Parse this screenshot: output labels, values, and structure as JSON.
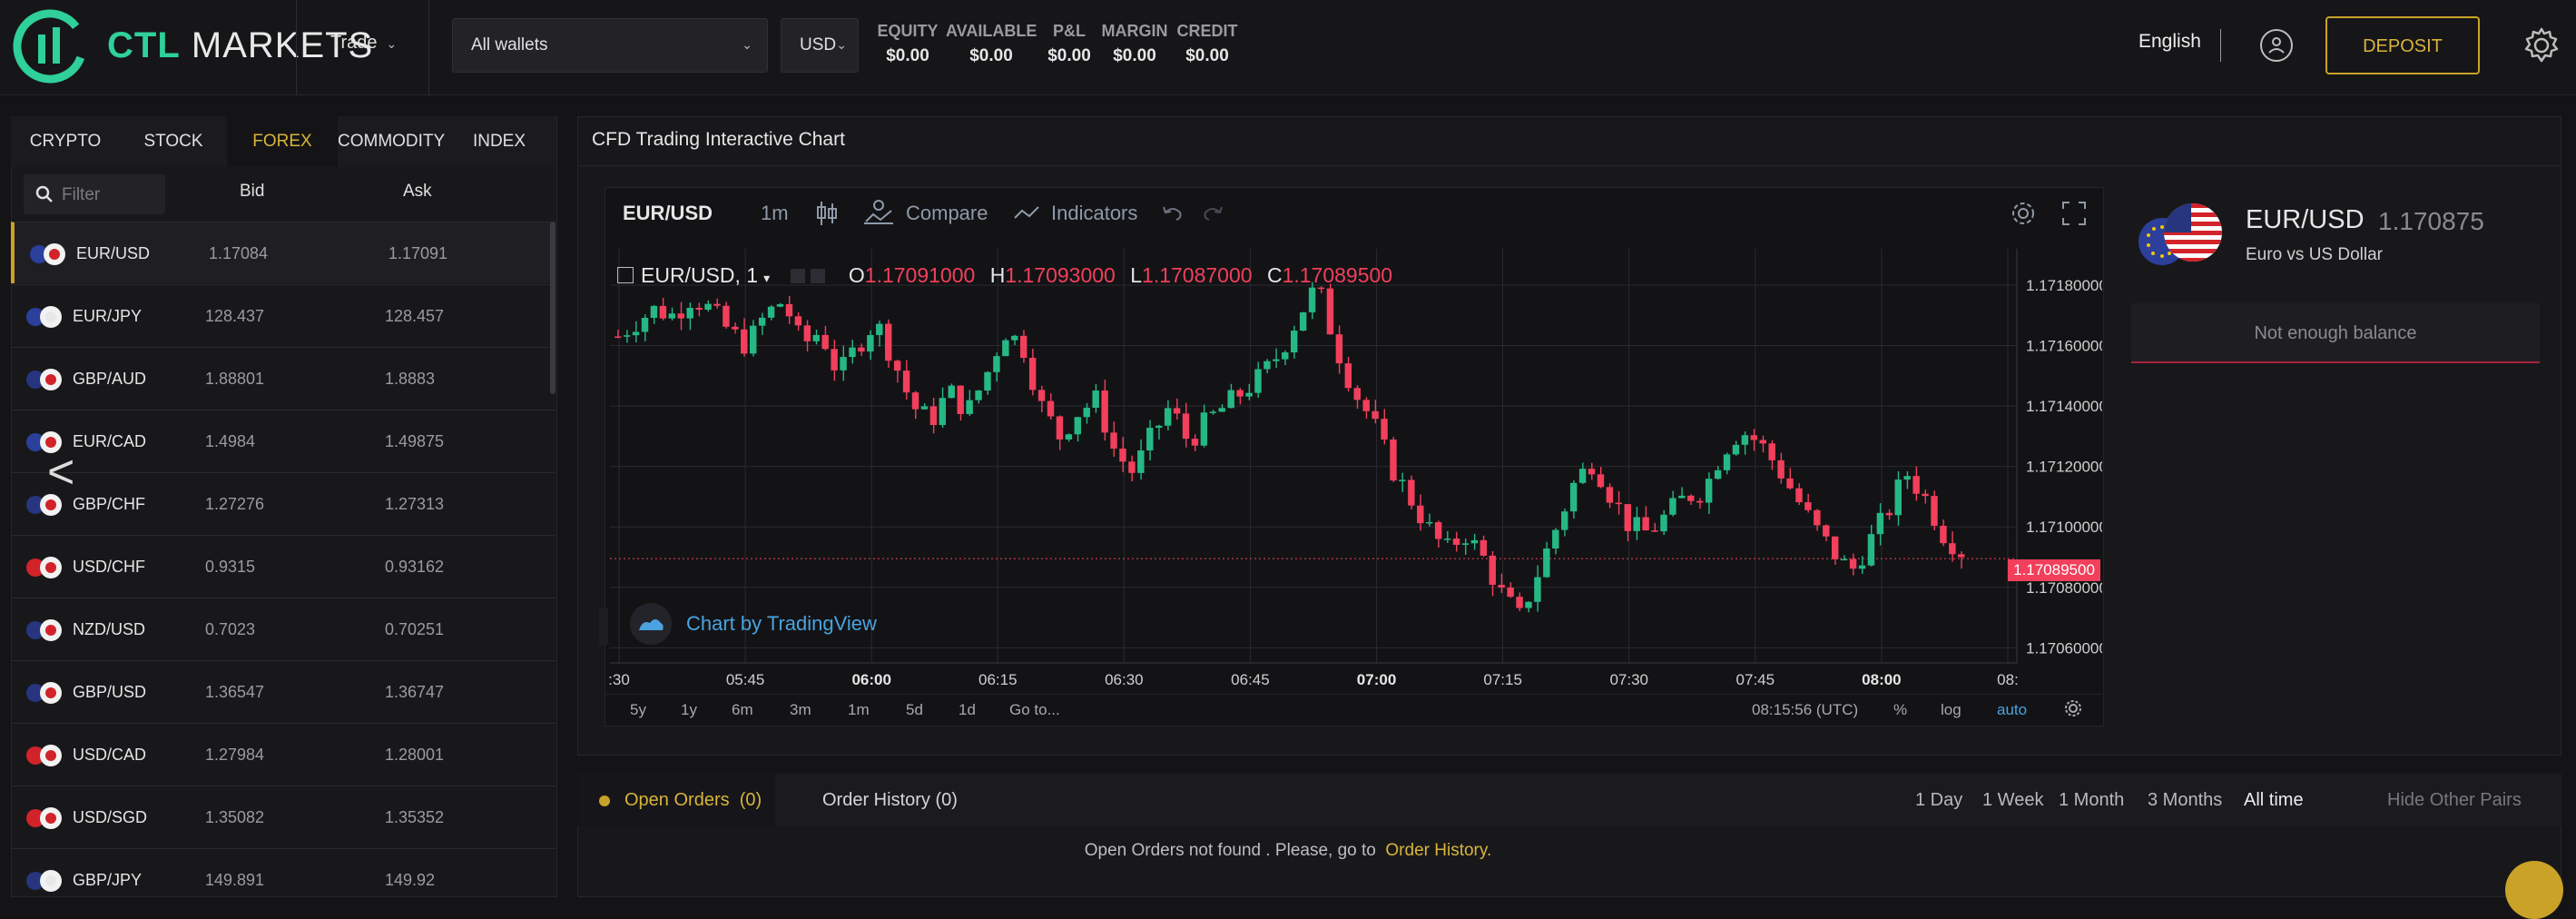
{
  "header": {
    "brand_first": "CTL",
    "brand_second": " MARKETS",
    "trade_menu": "Trade",
    "wallet_select": "All wallets",
    "currency_select": "USD",
    "metrics": [
      {
        "label": "EQUITY",
        "value": "$0.00"
      },
      {
        "label": "AVAILABLE",
        "value": "$0.00"
      },
      {
        "label": "P&L",
        "value": "$0.00"
      },
      {
        "label": "MARGIN",
        "value": "$0.00"
      },
      {
        "label": "CREDIT",
        "value": "$0.00"
      }
    ],
    "language": "English",
    "deposit_label": "DEPOSIT"
  },
  "markets": {
    "tabs": [
      "CRYPTO",
      "STOCK",
      "FOREX",
      "COMMODITY",
      "INDEX"
    ],
    "active_tab": "FOREX",
    "filter_placeholder": "Filter",
    "col_bid": "Bid",
    "col_ask": "Ask",
    "rows": [
      {
        "pair": "EUR/USD",
        "bid": "1.17084",
        "ask": "1.17091"
      },
      {
        "pair": "EUR/JPY",
        "bid": "128.437",
        "ask": "128.457"
      },
      {
        "pair": "GBP/AUD",
        "bid": "1.88801",
        "ask": "1.8883"
      },
      {
        "pair": "EUR/CAD",
        "bid": "1.4984",
        "ask": "1.49875"
      },
      {
        "pair": "GBP/CHF",
        "bid": "1.27276",
        "ask": "1.27313"
      },
      {
        "pair": "USD/CHF",
        "bid": "0.9315",
        "ask": "0.93162"
      },
      {
        "pair": "NZD/USD",
        "bid": "0.7023",
        "ask": "0.70251"
      },
      {
        "pair": "GBP/USD",
        "bid": "1.36547",
        "ask": "1.36747"
      },
      {
        "pair": "USD/CAD",
        "bid": "1.27984",
        "ask": "1.28001"
      },
      {
        "pair": "USD/SGD",
        "bid": "1.35082",
        "ask": "1.35352"
      },
      {
        "pair": "GBP/JPY",
        "bid": "149.891",
        "ask": "149.92"
      }
    ]
  },
  "nav": {
    "prev": "<",
    "next": ">"
  },
  "chart_panel": {
    "title": "CFD Trading Interactive Chart",
    "toolbar": {
      "symbol": "EUR/USD",
      "interval": "1m",
      "compare": "Compare",
      "indicators": "Indicators"
    },
    "legend": {
      "symbol": "EUR/USD, 1",
      "o_label": "O",
      "o_value": "1.17091000",
      "h_label": "H",
      "h_value": "1.17093000",
      "l_label": "L",
      "l_value": "1.17087000",
      "c_label": "C",
      "c_value": "1.17089500"
    },
    "watermark": "Chart by TradingView",
    "current_price": "1.17089500",
    "ranges": [
      "5y",
      "1y",
      "6m",
      "3m",
      "1m",
      "5d",
      "1d",
      "Go to..."
    ],
    "clock": "08:15:56 (UTC)",
    "pct": "%",
    "log": "log",
    "auto": "auto"
  },
  "chart_data": {
    "type": "candlestick",
    "price_ticks": [
      "1.17180000",
      "1.17160000",
      "1.17140000",
      "1.17120000",
      "1.17100000",
      "1.17080000",
      "1.17060000"
    ],
    "time_ticks": [
      ":30",
      "05:45",
      "06:00",
      "06:15",
      "06:30",
      "06:45",
      "07:00",
      "07:15",
      "07:30",
      "07:45",
      "08:00",
      "08:"
    ],
    "bold_time_ticks": [
      "06:00",
      "07:00",
      "08:00"
    ],
    "ylim": [
      1.17055,
      1.17192
    ],
    "path": [
      1.17163,
      1.17168,
      1.17172,
      1.1717,
      1.17176,
      1.17172,
      1.17165,
      1.1716,
      1.1717,
      1.17175,
      1.1716,
      1.17165,
      1.1715,
      1.1716,
      1.17168,
      1.17155,
      1.1714,
      1.17135,
      1.17145,
      1.17138,
      1.1715,
      1.17165,
      1.1716,
      1.1714,
      1.1713,
      1.17138,
      1.17142,
      1.17125,
      1.17118,
      1.1713,
      1.1714,
      1.17128,
      1.17135,
      1.1714,
      1.17145,
      1.1715,
      1.17158,
      1.1717,
      1.1718,
      1.1716,
      1.17145,
      1.17135,
      1.1712,
      1.1711,
      1.171,
      1.17092,
      1.17098,
      1.1709,
      1.17078,
      1.1707,
      1.17085,
      1.171,
      1.17115,
      1.17122,
      1.1711,
      1.171,
      1.17098,
      1.17104,
      1.1711,
      1.17112,
      1.17125,
      1.17132,
      1.17128,
      1.1712,
      1.1711,
      1.171,
      1.17092,
      1.17085,
      1.17095,
      1.17105,
      1.17118,
      1.1711,
      1.17098,
      1.17092
    ]
  },
  "info": {
    "pair": "EUR/USD",
    "price": "1.170875",
    "description": "Euro vs US Dollar",
    "balance_button": "Not enough balance"
  },
  "orders": {
    "open_label": "Open Orders",
    "open_count": "(0)",
    "history_label": "Order History (0)",
    "periods": [
      "1 Day",
      "1 Week",
      "1 Month",
      "3 Months",
      "All time"
    ],
    "active_period": "All time",
    "hide_pairs": "Hide Other Pairs",
    "empty_msg": "Open Orders not found . Please, go to",
    "empty_link": "Order History."
  },
  "colors": {
    "accent": "#c9a227",
    "up": "#26b884",
    "down": "#f23f5b",
    "brand": "#2fd09a"
  }
}
